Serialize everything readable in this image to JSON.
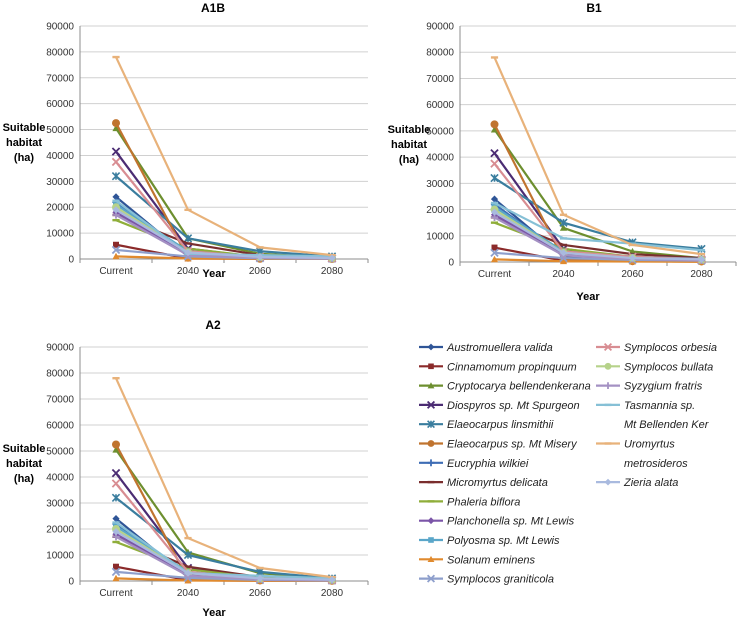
{
  "chart_data": [
    {
      "type": "line",
      "title": "A1B",
      "xlabel": "Year",
      "ylabel": [
        "Suitable",
        "habitat",
        "(ha)"
      ],
      "categories": [
        "Current",
        "2040",
        "2060",
        "2080"
      ],
      "ylim": [
        0,
        90000
      ],
      "yticks": [
        0,
        10000,
        20000,
        30000,
        40000,
        50000,
        60000,
        70000,
        80000,
        90000
      ],
      "grid": true,
      "series": [
        {
          "name": "Austromuellera valida",
          "values": [
            24000,
            1000,
            200,
            100
          ]
        },
        {
          "name": "Cinnamomum propinquum",
          "values": [
            5500,
            200,
            100,
            100
          ]
        },
        {
          "name": "Cryptocarya bellendenkerana",
          "values": [
            50500,
            8000,
            2000,
            600
          ]
        },
        {
          "name": "Diospyros sp. Mt Spurgeon",
          "values": [
            41500,
            4000,
            600,
            300
          ]
        },
        {
          "name": "Elaeocarpus linsmithii",
          "values": [
            32000,
            8000,
            3000,
            1000
          ]
        },
        {
          "name": "Elaeocarpus sp. Mt Misery",
          "values": [
            52500,
            500,
            100,
            50
          ]
        },
        {
          "name": "Eucryphia wilkiei",
          "values": [
            22000,
            1500,
            400,
            200
          ]
        },
        {
          "name": "Micromyrtus delicata",
          "values": [
            17000,
            6000,
            1500,
            500
          ]
        },
        {
          "name": "Phaleria biflora",
          "values": [
            15000,
            4000,
            800,
            300
          ]
        },
        {
          "name": "Planchonella sp. Mt Lewis",
          "values": [
            18000,
            2000,
            500,
            200
          ]
        },
        {
          "name": "Polyosma sp. Mt Lewis",
          "values": [
            21000,
            3000,
            800,
            300
          ]
        },
        {
          "name": "Solanum eminens",
          "values": [
            1000,
            200,
            100,
            50
          ]
        },
        {
          "name": "Symplocos graniticola",
          "values": [
            3500,
            1000,
            300,
            100
          ]
        },
        {
          "name": "Symplocos orbesia",
          "values": [
            37500,
            3000,
            800,
            300
          ]
        },
        {
          "name": "Symplocos bullata",
          "values": [
            20000,
            2500,
            700,
            300
          ]
        },
        {
          "name": "Syzygium fratris",
          "values": [
            17000,
            1500,
            500,
            200
          ]
        },
        {
          "name": "Tasmannia sp. Mt Bellenden Ker",
          "values": [
            22500,
            2000,
            1500,
            1000
          ]
        },
        {
          "name": "Uromyrtus metrosideros",
          "values": [
            78000,
            19000,
            4500,
            1500
          ]
        },
        {
          "name": "Zieria alata",
          "values": [
            19000,
            2500,
            800,
            400
          ]
        }
      ]
    },
    {
      "type": "line",
      "title": "B1",
      "xlabel": "Year",
      "ylabel": [
        "Suitable",
        "habitat",
        "(ha)"
      ],
      "categories": [
        "Current",
        "2040",
        "2060",
        "2080"
      ],
      "ylim": [
        0,
        90000
      ],
      "yticks": [
        0,
        10000,
        20000,
        30000,
        40000,
        50000,
        60000,
        70000,
        80000,
        90000
      ],
      "grid": true,
      "series": [
        {
          "name": "Austromuellera valida",
          "values": [
            24000,
            2000,
            800,
            500
          ]
        },
        {
          "name": "Cinnamomum propinquum",
          "values": [
            5500,
            500,
            300,
            200
          ]
        },
        {
          "name": "Cryptocarya bellendenkerana",
          "values": [
            50500,
            13000,
            4000,
            1500
          ]
        },
        {
          "name": "Diospyros sp. Mt Spurgeon",
          "values": [
            41500,
            5000,
            1500,
            800
          ]
        },
        {
          "name": "Elaeocarpus linsmithii",
          "values": [
            32000,
            15000,
            7500,
            5000
          ]
        },
        {
          "name": "Elaeocarpus sp. Mt Misery",
          "values": [
            52500,
            1000,
            300,
            200
          ]
        },
        {
          "name": "Eucryphia wilkiei",
          "values": [
            22000,
            3000,
            1500,
            1000
          ]
        },
        {
          "name": "Micromyrtus delicata",
          "values": [
            17000,
            6500,
            3000,
            1500
          ]
        },
        {
          "name": "Phaleria biflora",
          "values": [
            15000,
            5000,
            2000,
            1000
          ]
        },
        {
          "name": "Planchonella sp. Mt Lewis",
          "values": [
            18000,
            3000,
            1500,
            800
          ]
        },
        {
          "name": "Polyosma sp. Mt Lewis",
          "values": [
            21000,
            4000,
            2000,
            1200
          ]
        },
        {
          "name": "Solanum eminens",
          "values": [
            1000,
            300,
            200,
            100
          ]
        },
        {
          "name": "Symplocos graniticola",
          "values": [
            3500,
            1500,
            800,
            500
          ]
        },
        {
          "name": "Symplocos orbesia",
          "values": [
            37500,
            4000,
            2000,
            1000
          ]
        },
        {
          "name": "Symplocos bullata",
          "values": [
            20000,
            3500,
            1500,
            800
          ]
        },
        {
          "name": "Syzygium fratris",
          "values": [
            17000,
            2500,
            1200,
            600
          ]
        },
        {
          "name": "Tasmannia sp. Mt Bellenden Ker",
          "values": [
            22500,
            9000,
            7000,
            4500
          ]
        },
        {
          "name": "Uromyrtus metrosideros",
          "values": [
            78000,
            18000,
            6500,
            3000
          ]
        },
        {
          "name": "Zieria alata",
          "values": [
            19000,
            3500,
            1500,
            1000
          ]
        }
      ]
    },
    {
      "type": "line",
      "title": "A2",
      "xlabel": "Year",
      "ylabel": [
        "Suitable",
        "habitat",
        "(ha)"
      ],
      "categories": [
        "Current",
        "2040",
        "2060",
        "2080"
      ],
      "ylim": [
        0,
        90000
      ],
      "yticks": [
        0,
        10000,
        20000,
        30000,
        40000,
        50000,
        60000,
        70000,
        80000,
        90000
      ],
      "grid": true,
      "series": [
        {
          "name": "Austromuellera valida",
          "values": [
            24000,
            1500,
            400,
            150
          ]
        },
        {
          "name": "Cinnamomum propinquum",
          "values": [
            5500,
            300,
            100,
            50
          ]
        },
        {
          "name": "Cryptocarya bellendenkerana",
          "values": [
            50500,
            11000,
            3000,
            800
          ]
        },
        {
          "name": "Diospyros sp. Mt Spurgeon",
          "values": [
            41500,
            5000,
            1000,
            400
          ]
        },
        {
          "name": "Elaeocarpus linsmithii",
          "values": [
            32000,
            10000,
            3500,
            1000
          ]
        },
        {
          "name": "Elaeocarpus sp. Mt Misery",
          "values": [
            52500,
            700,
            200,
            100
          ]
        },
        {
          "name": "Eucryphia wilkiei",
          "values": [
            22000,
            2000,
            600,
            300
          ]
        },
        {
          "name": "Micromyrtus delicata",
          "values": [
            17000,
            5500,
            1500,
            500
          ]
        },
        {
          "name": "Phaleria biflora",
          "values": [
            15000,
            4500,
            1200,
            400
          ]
        },
        {
          "name": "Planchonella sp. Mt Lewis",
          "values": [
            18000,
            2500,
            700,
            300
          ]
        },
        {
          "name": "Polyosma sp. Mt Lewis",
          "values": [
            21000,
            3500,
            1000,
            400
          ]
        },
        {
          "name": "Solanum eminens",
          "values": [
            1000,
            200,
            100,
            50
          ]
        },
        {
          "name": "Symplocos graniticola",
          "values": [
            3500,
            1200,
            400,
            150
          ]
        },
        {
          "name": "Symplocos orbesia",
          "values": [
            37500,
            3500,
            1000,
            400
          ]
        },
        {
          "name": "Symplocos bullata",
          "values": [
            20000,
            3000,
            900,
            400
          ]
        },
        {
          "name": "Syzygium fratris",
          "values": [
            17000,
            2000,
            700,
            300
          ]
        },
        {
          "name": "Tasmannia sp. Mt Bellenden Ker",
          "values": [
            22500,
            3000,
            2000,
            1000
          ]
        },
        {
          "name": "Uromyrtus metrosideros",
          "values": [
            78000,
            16500,
            5000,
            1500
          ]
        },
        {
          "name": "Zieria alata",
          "values": [
            19000,
            3000,
            1000,
            500
          ]
        }
      ]
    }
  ],
  "legend": {
    "placement": "bottom-right",
    "columns": [
      [
        {
          "label": "Austromuellera valida",
          "color": "#2f5597",
          "marker": "diamond"
        },
        {
          "label": "Cinnamomum propinquum",
          "color": "#8b2a2a",
          "marker": "square"
        },
        {
          "label": "Cryptocarya bellendenkerana",
          "color": "#6d8f2f",
          "marker": "triangle"
        },
        {
          "label": "Diospyros sp. Mt Spurgeon",
          "color": "#4b2c73",
          "marker": "x"
        },
        {
          "label": "Elaeocarpus linsmithii",
          "color": "#3a7d9e",
          "marker": "star"
        },
        {
          "label": "Elaeocarpus sp. Mt Misery",
          "color": "#c0742f",
          "marker": "circle"
        },
        {
          "label": "Eucryphia wilkiei",
          "color": "#3e6db5",
          "marker": "plus"
        },
        {
          "label": "Micromyrtus delicata",
          "color": "#7a2e2e",
          "marker": "dash"
        },
        {
          "label": "Phaleria biflora",
          "color": "#8fae3a",
          "marker": "dash"
        },
        {
          "label": "Planchonella sp. Mt Lewis",
          "color": "#7b55a8",
          "marker": "diamond"
        },
        {
          "label": "Polyosma sp. Mt Lewis",
          "color": "#5aa6c9",
          "marker": "square"
        },
        {
          "label": "Solanum eminens",
          "color": "#e08a2e",
          "marker": "triangle"
        },
        {
          "label": "Symplocos graniticola",
          "color": "#8e9fcc",
          "marker": "x"
        }
      ],
      [
        {
          "label": "Symplocos orbesia",
          "color": "#d88d92",
          "marker": "x"
        },
        {
          "label": "Symplocos bullata",
          "color": "#b6d28a",
          "marker": "circle"
        },
        {
          "label": "Syzygium fratris",
          "color": "#a491c3",
          "marker": "plus"
        },
        {
          "label": "Tasmannia sp.",
          "label2": "Mt Bellenden Ker",
          "color": "#86c0d6",
          "marker": "dash"
        },
        {
          "label": "Uromyrtus",
          "label2": "metrosideros",
          "color": "#e8b27a",
          "marker": "dash"
        },
        {
          "label": "Zieria alata",
          "color": "#a9badf",
          "marker": "diamond"
        }
      ]
    ]
  },
  "colors": {
    "grid": "#d0d0d0",
    "axis": "#8c8c8c",
    "tick_text": "#333333"
  }
}
